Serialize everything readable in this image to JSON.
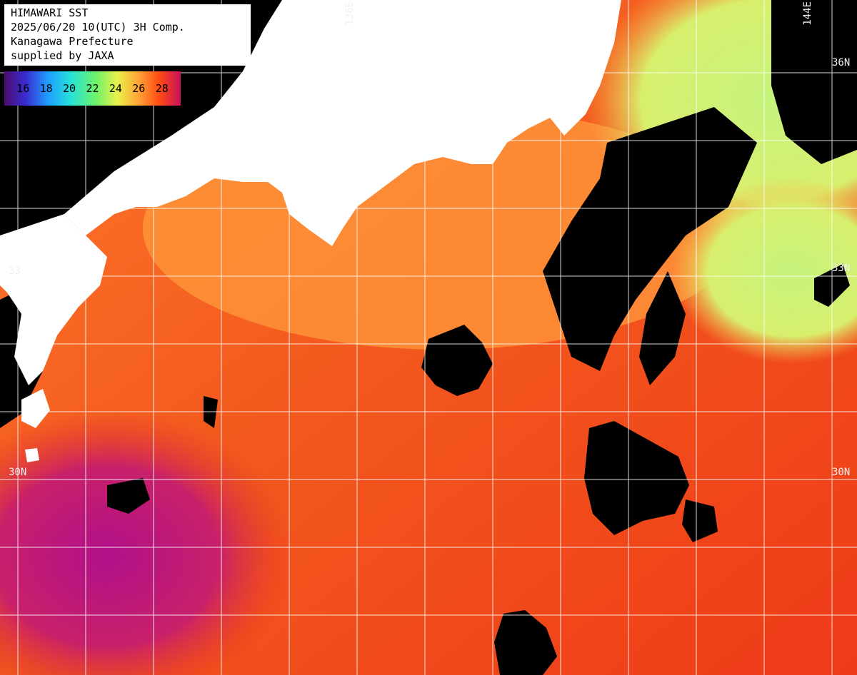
{
  "header": {
    "lines": [
      "HIMAWARI SST",
      "2025/06/20 10(UTC) 3H Comp.",
      "Kanagawa Prefecture",
      "supplied by JAXA"
    ]
  },
  "legend": {
    "ticks": [
      "16",
      "18",
      "20",
      "22",
      "24",
      "26",
      "28"
    ]
  },
  "grid_labels": {
    "lon_136": "136E",
    "lon_144": "144E",
    "lat_36": "36N",
    "lat_33_left": "33",
    "lat_33_right": "33N",
    "lat_30_left": "30N",
    "lat_30_right": "30N"
  },
  "colors": {
    "land": "#ffffff",
    "cloud_no_data": "#000000",
    "grid": "#ffffff",
    "sst_cool": "#c8f27a",
    "sst_mid": "#ff8a2a",
    "sst_warm": "#f3461a",
    "sst_hot": "#b4128a"
  }
}
